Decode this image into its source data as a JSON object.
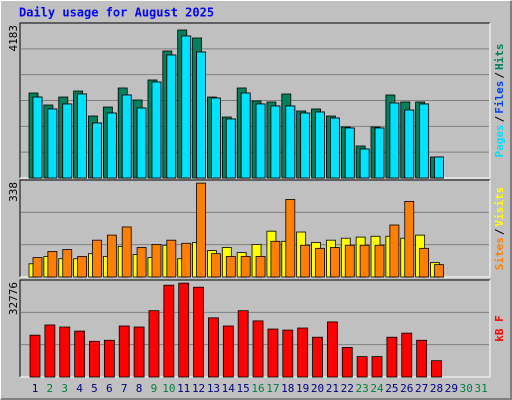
{
  "chart_data": [
    {
      "type": "bar",
      "title": "Daily usage for August 2025",
      "legend_separator": "/",
      "categories": [
        "1",
        "2",
        "3",
        "4",
        "5",
        "6",
        "7",
        "8",
        "9",
        "10",
        "11",
        "12",
        "13",
        "14",
        "15",
        "16",
        "17",
        "18",
        "19",
        "20",
        "21",
        "22",
        "23",
        "24",
        "25",
        "26",
        "27",
        "28",
        "29",
        "30",
        "31"
      ],
      "category_colors": [
        "#000080",
        "#008040",
        "#008040",
        "#000080",
        "#000080",
        "#000080",
        "#000080",
        "#000080",
        "#008040",
        "#008040",
        "#000080",
        "#000080",
        "#000080",
        "#000080",
        "#000080",
        "#008040",
        "#008040",
        "#000080",
        "#000080",
        "#000080",
        "#000080",
        "#000080",
        "#008040",
        "#008040",
        "#000080",
        "#000080",
        "#000080",
        "#000080",
        "#000080",
        "#008040",
        "#008040"
      ],
      "ylim": [
        0,
        4183
      ],
      "yticks": [
        4183
      ],
      "series": [
        {
          "name": "Hits",
          "color": "#00805c",
          "values": [
            2324,
            1996,
            2214,
            2378,
            1695,
            1941,
            2461,
            2133,
            2680,
            3472,
            4046,
            3828,
            2214,
            1668,
            2461,
            2105,
            2078,
            2297,
            1832,
            1887,
            1695,
            1394,
            875,
            1394,
            2269,
            2078,
            2078,
            574,
            null,
            null,
            null
          ]
        },
        {
          "name": "Files",
          "color": "#0040ff",
          "values": [
            2214,
            1887,
            2023,
            2297,
            1504,
            1777,
            2269,
            1914,
            2625,
            3363,
            3883,
            3445,
            2187,
            1613,
            2324,
            2023,
            1969,
            1969,
            1777,
            1804,
            1640,
            1367,
            793,
            1367,
            2051,
            1859,
            2023,
            574,
            null,
            null,
            null
          ]
        },
        {
          "name": "Pages",
          "color": "#00e0ff",
          "values": [
            2214,
            1887,
            2023,
            2297,
            1504,
            1777,
            2269,
            1914,
            2625,
            3363,
            3883,
            3445,
            2187,
            1613,
            2324,
            2023,
            1969,
            1969,
            1777,
            1804,
            1640,
            1367,
            793,
            1367,
            2051,
            1859,
            2023,
            574,
            null,
            null,
            null
          ]
        }
      ]
    },
    {
      "type": "bar",
      "ylim": [
        0,
        338
      ],
      "yticks": [
        338
      ],
      "series": [
        {
          "name": "Visits",
          "color": "#ffff00",
          "values": [
            47,
            73,
            65,
            65,
            83,
            73,
            109,
            80,
            69,
            113,
            65,
            123,
            94,
            105,
            87,
            116,
            163,
            127,
            160,
            123,
            131,
            138,
            142,
            145,
            145,
            138,
            149,
            51,
            null,
            null,
            null
          ]
        },
        {
          "name": "Sites",
          "color": "#ff8000",
          "values": [
            69,
            91,
            98,
            73,
            131,
            149,
            178,
            105,
            116,
            131,
            120,
            334,
            83,
            73,
            73,
            73,
            127,
            276,
            113,
            102,
            105,
            113,
            113,
            113,
            185,
            269,
            102,
            44,
            null,
            null,
            null
          ]
        }
      ]
    },
    {
      "type": "bar",
      "ylim": [
        0,
        32776
      ],
      "yticks": [
        32776
      ],
      "series": [
        {
          "name": "kB F",
          "color": "#ff0000",
          "values": [
            14432,
            17952,
            17248,
            15840,
            12320,
            12672,
            17600,
            17248,
            22880,
            31680,
            32384,
            30976,
            20416,
            17600,
            22880,
            19360,
            16544,
            16192,
            16896,
            13728,
            19008,
            10208,
            7040,
            7040,
            13728,
            15136,
            12672,
            5632,
            null,
            null,
            null
          ]
        }
      ]
    }
  ]
}
